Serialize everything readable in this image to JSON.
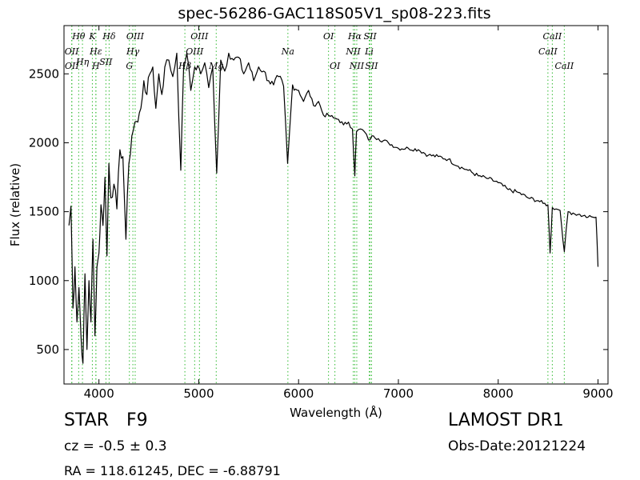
{
  "chart_data": {
    "type": "line",
    "title": "spec-56286-GAC118S05V1_sp08-223.fits",
    "xlabel": "Wavelength (Å)",
    "ylabel": "Flux (relative)",
    "xlim": [
      3650,
      9100
    ],
    "ylim": [
      250,
      2850
    ],
    "xticks": [
      4000,
      5000,
      6000,
      7000,
      8000,
      9000
    ],
    "yticks": [
      500,
      1000,
      1500,
      2000,
      2500
    ],
    "grid": false,
    "line_color": "#000000",
    "marker_color": "#33bb33",
    "series": [
      {
        "values_note": "",
        "x": [
          3700,
          3720,
          3740,
          3760,
          3780,
          3800,
          3820,
          3840,
          3860,
          3880,
          3900,
          3920,
          3940,
          3960,
          3980,
          4000,
          4020,
          4040,
          4060,
          4080,
          4100,
          4120,
          4150,
          4180,
          4210,
          4240,
          4270,
          4300,
          4330,
          4360,
          4390,
          4420,
          4450,
          4480,
          4510,
          4540,
          4570,
          4600,
          4630,
          4660,
          4700,
          4740,
          4780,
          4820,
          4850,
          4880,
          4920,
          4960,
          4990,
          5020,
          5060,
          5100,
          5140,
          5180,
          5220,
          5260,
          5300,
          5350,
          5400,
          5450,
          5500,
          5550,
          5600,
          5650,
          5700,
          5750,
          5800,
          5850,
          5890,
          5940,
          6000,
          6050,
          6100,
          6150,
          6200,
          6250,
          6300,
          6350,
          6400,
          6450,
          6500,
          6540,
          6563,
          6580,
          6620,
          6660,
          6700,
          6750,
          6800,
          6900,
          7000,
          7100,
          7200,
          7300,
          7400,
          7500,
          7600,
          7700,
          7800,
          7900,
          8000,
          8100,
          8200,
          8300,
          8400,
          8450,
          8498,
          8520,
          8542,
          8580,
          8620,
          8662,
          8700,
          8750,
          8800,
          8850,
          8900,
          8950,
          8980,
          9000
        ],
        "y": [
          1400,
          1540,
          800,
          1100,
          700,
          950,
          600,
          400,
          1050,
          500,
          1000,
          700,
          1300,
          600,
          1100,
          1200,
          1550,
          1400,
          1750,
          1180,
          1850,
          1600,
          1700,
          1520,
          1950,
          1900,
          1300,
          1850,
          2050,
          2150,
          2150,
          2250,
          2450,
          2350,
          2500,
          2550,
          2250,
          2500,
          2350,
          2550,
          2600,
          2480,
          2650,
          1800,
          2580,
          2650,
          2380,
          2550,
          2560,
          2500,
          2580,
          2400,
          2550,
          1780,
          2600,
          2520,
          2650,
          2600,
          2620,
          2500,
          2580,
          2450,
          2550,
          2520,
          2450,
          2420,
          2480,
          2410,
          1850,
          2420,
          2380,
          2300,
          2380,
          2270,
          2300,
          2200,
          2200,
          2180,
          2170,
          2130,
          2150,
          2100,
          1760,
          2080,
          2100,
          2080,
          2020,
          2050,
          2030,
          2000,
          1960,
          1960,
          1950,
          1910,
          1900,
          1880,
          1830,
          1800,
          1760,
          1740,
          1710,
          1660,
          1640,
          1600,
          1580,
          1560,
          1550,
          1200,
          1530,
          1520,
          1510,
          1210,
          1500,
          1490,
          1480,
          1470,
          1460,
          1460,
          1460,
          1100
        ]
      }
    ],
    "markers": [
      {
        "label": "Hθ",
        "x": 3797,
        "row": 0
      },
      {
        "label": "K",
        "x": 3934,
        "row": 0
      },
      {
        "label": "Hδ",
        "x": 4102,
        "row": 0
      },
      {
        "label": "OIII",
        "x": 4363,
        "row": 0
      },
      {
        "label": "OIII",
        "x": 5007,
        "row": 0
      },
      {
        "label": "OI",
        "x": 6300,
        "row": 0
      },
      {
        "label": "Hα",
        "x": 6563,
        "row": 0
      },
      {
        "label": "SII",
        "x": 6717,
        "row": 0
      },
      {
        "label": "CaII",
        "x": 8542,
        "row": 0
      },
      {
        "label": "OII",
        "x": 3727,
        "row": 1
      },
      {
        "label": "Hε",
        "x": 3970,
        "row": 1
      },
      {
        "label": "Hγ",
        "x": 4340,
        "row": 1
      },
      {
        "label": "OIII",
        "x": 4959,
        "row": 1
      },
      {
        "label": "Na",
        "x": 5893,
        "row": 1
      },
      {
        "label": "NII",
        "x": 6548,
        "row": 1
      },
      {
        "label": "Li",
        "x": 6708,
        "row": 1
      },
      {
        "label": "CaII",
        "x": 8498,
        "row": 1
      },
      {
        "label": "Hη",
        "x": 3835,
        "row": 1.5
      },
      {
        "label": "SII",
        "x": 4070,
        "row": 1.5
      },
      {
        "label": "OII",
        "x": 3729,
        "row": 2
      },
      {
        "label": "H",
        "x": 3969,
        "row": 2
      },
      {
        "label": "G",
        "x": 4305,
        "row": 2
      },
      {
        "label": "Hβ",
        "x": 4861,
        "row": 2
      },
      {
        "label": "Mg",
        "x": 5175,
        "row": 2
      },
      {
        "label": "OI",
        "x": 6364,
        "row": 2
      },
      {
        "label": "NII",
        "x": 6583,
        "row": 2
      },
      {
        "label": "SII",
        "x": 6731,
        "row": 2
      },
      {
        "label": "CaII",
        "x": 8662,
        "row": 2
      }
    ]
  },
  "info": {
    "object_class": "STAR",
    "subclass": "F9",
    "redshift": "cz = -0.5  ± 0.3",
    "survey": "LAMOST DR1",
    "obs_date": "Obs-Date:20121224",
    "coords": "RA = 118.61245, DEC = -6.88791"
  }
}
